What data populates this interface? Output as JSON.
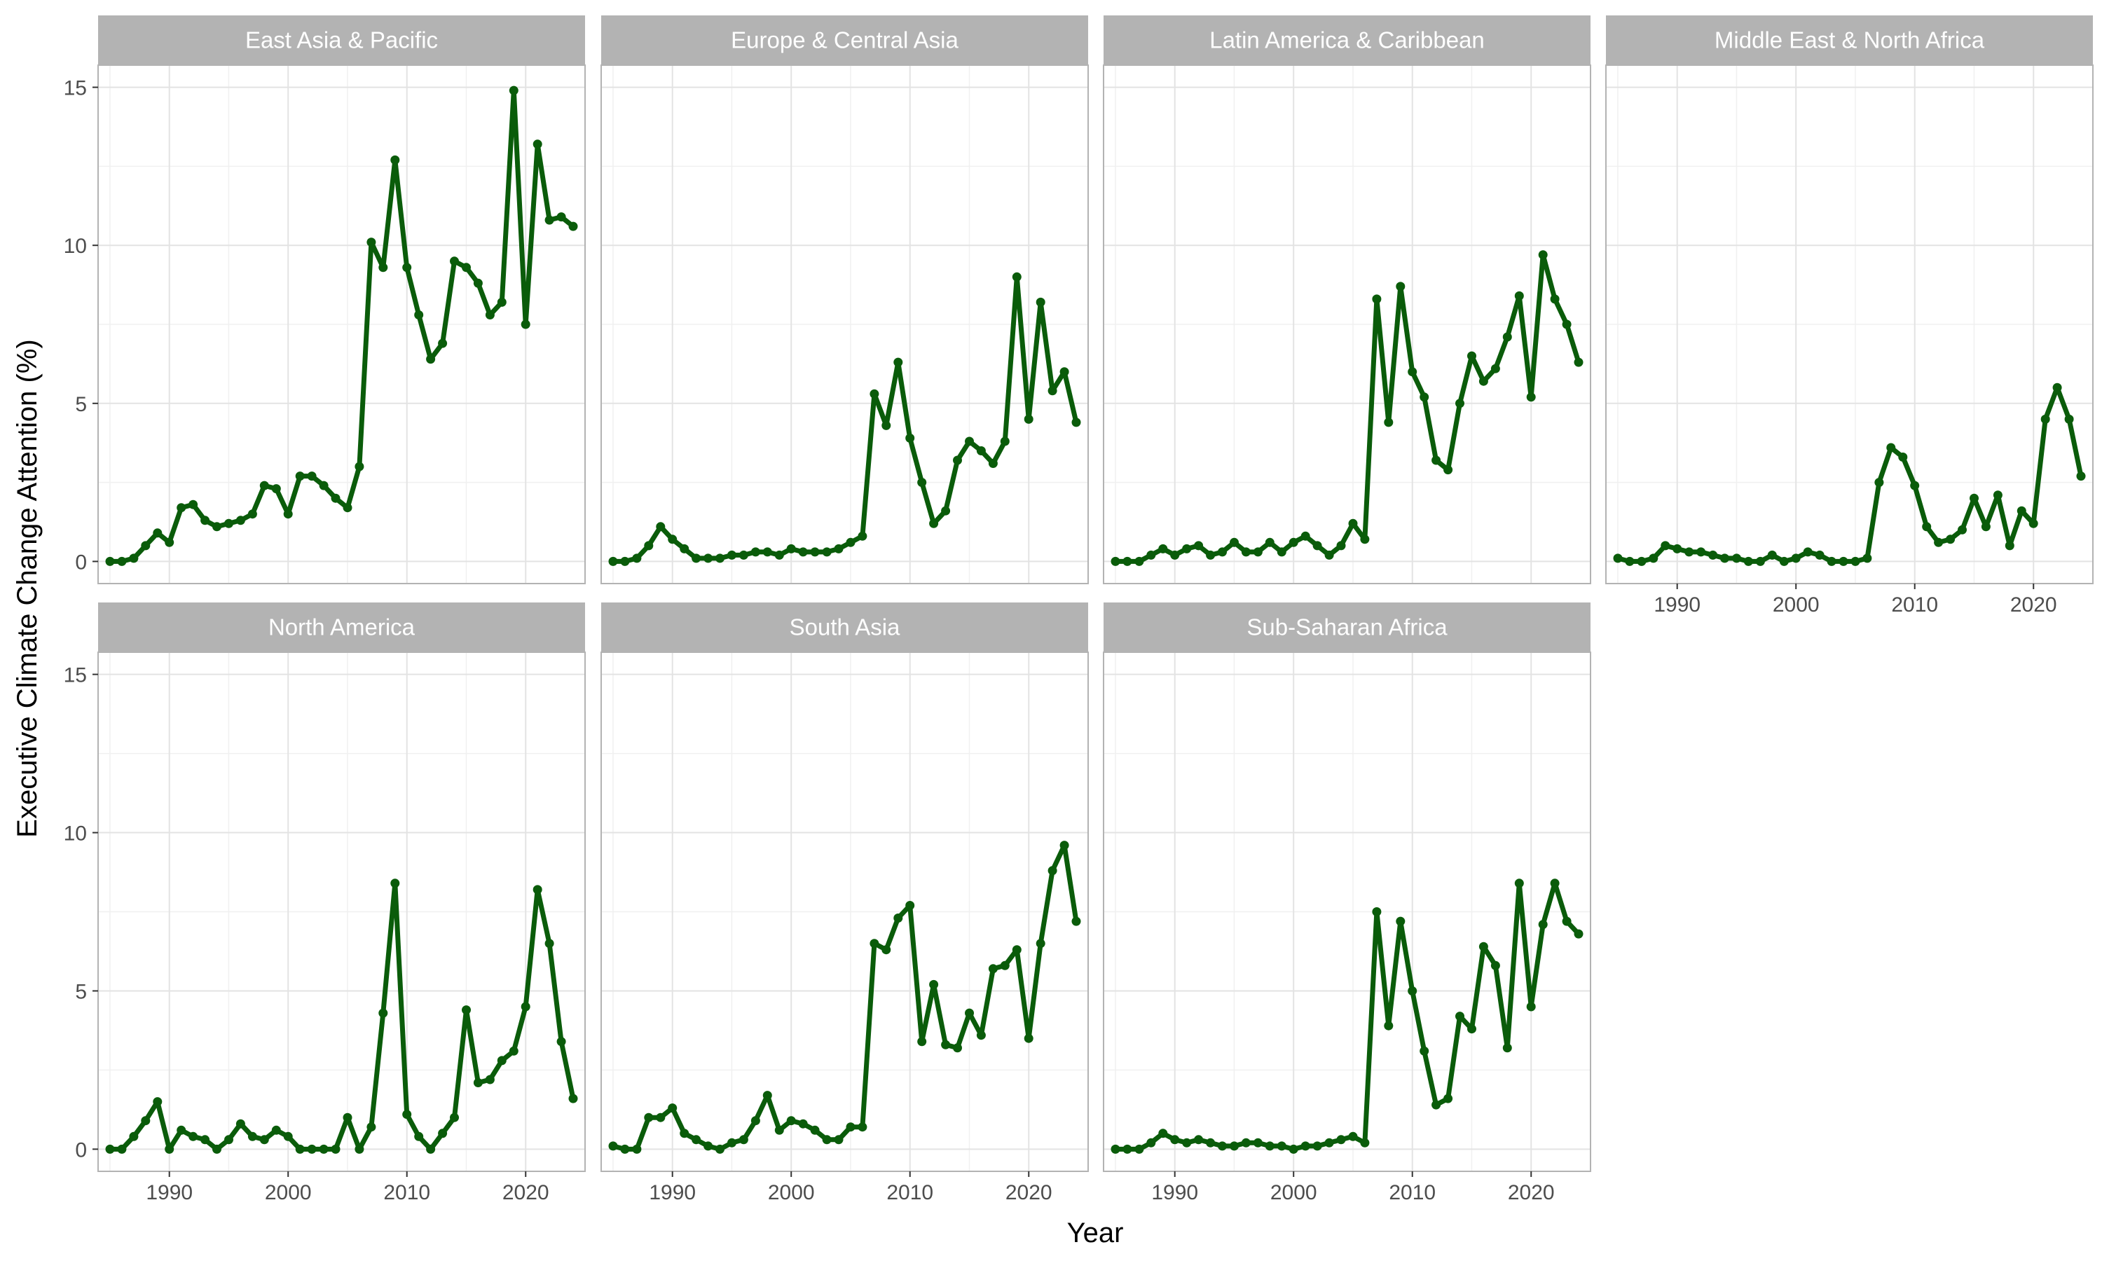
{
  "chart_data": {
    "type": "line",
    "facet_by": "region",
    "xlabel": "Year",
    "ylabel": "Executive Climate Change Attention (%)",
    "xlim": [
      1984,
      2025
    ],
    "ylim": [
      -0.7,
      15.7
    ],
    "x_ticks": [
      1990,
      2000,
      2010,
      2020
    ],
    "y_ticks": [
      0,
      5,
      10,
      15
    ],
    "grid": true,
    "line_color": "#0a5c0a",
    "strip_color": "#b3b3b3",
    "x": [
      1985,
      1986,
      1987,
      1988,
      1989,
      1990,
      1991,
      1992,
      1993,
      1994,
      1995,
      1996,
      1997,
      1998,
      1999,
      2000,
      2001,
      2002,
      2003,
      2004,
      2005,
      2006,
      2007,
      2008,
      2009,
      2010,
      2011,
      2012,
      2013,
      2014,
      2015,
      2016,
      2017,
      2018,
      2019,
      2020,
      2021,
      2022,
      2023,
      2024
    ],
    "panels": [
      {
        "name": "East Asia & Pacific",
        "values": [
          0.0,
          0.0,
          0.1,
          0.5,
          0.9,
          0.6,
          1.7,
          1.8,
          1.3,
          1.1,
          1.2,
          1.3,
          1.5,
          2.4,
          2.3,
          1.5,
          2.7,
          2.7,
          2.4,
          2.0,
          1.7,
          3.0,
          10.1,
          9.3,
          12.7,
          9.3,
          7.8,
          6.4,
          6.9,
          9.5,
          9.3,
          8.8,
          7.8,
          8.2,
          14.9,
          7.5,
          13.2,
          10.8,
          10.9,
          10.6
        ]
      },
      {
        "name": "Europe & Central Asia",
        "values": [
          0.0,
          0.0,
          0.1,
          0.5,
          1.1,
          0.7,
          0.4,
          0.1,
          0.1,
          0.1,
          0.2,
          0.2,
          0.3,
          0.3,
          0.2,
          0.4,
          0.3,
          0.3,
          0.3,
          0.4,
          0.6,
          0.8,
          5.3,
          4.3,
          6.3,
          3.9,
          2.5,
          1.2,
          1.6,
          3.2,
          3.8,
          3.5,
          3.1,
          3.8,
          9.0,
          4.5,
          8.2,
          5.4,
          6.0,
          4.4
        ]
      },
      {
        "name": "Latin America & Caribbean",
        "values": [
          0.0,
          0.0,
          0.0,
          0.2,
          0.4,
          0.2,
          0.4,
          0.5,
          0.2,
          0.3,
          0.6,
          0.3,
          0.3,
          0.6,
          0.3,
          0.6,
          0.8,
          0.5,
          0.2,
          0.5,
          1.2,
          0.7,
          8.3,
          4.4,
          8.7,
          6.0,
          5.2,
          3.2,
          2.9,
          5.0,
          6.5,
          5.7,
          6.1,
          7.1,
          8.4,
          5.2,
          9.7,
          8.3,
          7.5,
          6.3
        ]
      },
      {
        "name": "Middle East & North Africa",
        "values": [
          0.1,
          0.0,
          0.0,
          0.1,
          0.5,
          0.4,
          0.3,
          0.3,
          0.2,
          0.1,
          0.1,
          0.0,
          0.0,
          0.2,
          0.0,
          0.1,
          0.3,
          0.2,
          0.0,
          0.0,
          0.0,
          0.1,
          2.5,
          3.6,
          3.3,
          2.4,
          1.1,
          0.6,
          0.7,
          1.0,
          2.0,
          1.1,
          2.1,
          0.5,
          1.6,
          1.2,
          4.5,
          5.5,
          4.5,
          2.7
        ]
      },
      {
        "name": "North America",
        "values": [
          0.0,
          0.0,
          0.4,
          0.9,
          1.5,
          0.0,
          0.6,
          0.4,
          0.3,
          0.0,
          0.3,
          0.8,
          0.4,
          0.3,
          0.6,
          0.4,
          0.0,
          0.0,
          0.0,
          0.0,
          1.0,
          0.0,
          0.7,
          4.3,
          8.4,
          1.1,
          0.4,
          0.0,
          0.5,
          1.0,
          4.4,
          2.1,
          2.2,
          2.8,
          3.1,
          4.5,
          8.2,
          6.5,
          3.4,
          1.6
        ]
      },
      {
        "name": "South Asia",
        "values": [
          0.1,
          0.0,
          0.0,
          1.0,
          1.0,
          1.3,
          0.5,
          0.3,
          0.1,
          0.0,
          0.2,
          0.3,
          0.9,
          1.7,
          0.6,
          0.9,
          0.8,
          0.6,
          0.3,
          0.3,
          0.7,
          0.7,
          6.5,
          6.3,
          7.3,
          7.7,
          3.4,
          5.2,
          3.3,
          3.2,
          4.3,
          3.6,
          5.7,
          5.8,
          6.3,
          3.5,
          6.5,
          8.8,
          9.6,
          7.2
        ]
      },
      {
        "name": "Sub-Saharan Africa",
        "values": [
          0.0,
          0.0,
          0.0,
          0.2,
          0.5,
          0.3,
          0.2,
          0.3,
          0.2,
          0.1,
          0.1,
          0.2,
          0.2,
          0.1,
          0.1,
          0.0,
          0.1,
          0.1,
          0.2,
          0.3,
          0.4,
          0.2,
          7.5,
          3.9,
          7.2,
          5.0,
          3.1,
          1.4,
          1.6,
          4.2,
          3.8,
          6.4,
          5.8,
          3.2,
          8.4,
          4.5,
          7.1,
          8.4,
          7.2,
          6.8
        ]
      }
    ]
  }
}
